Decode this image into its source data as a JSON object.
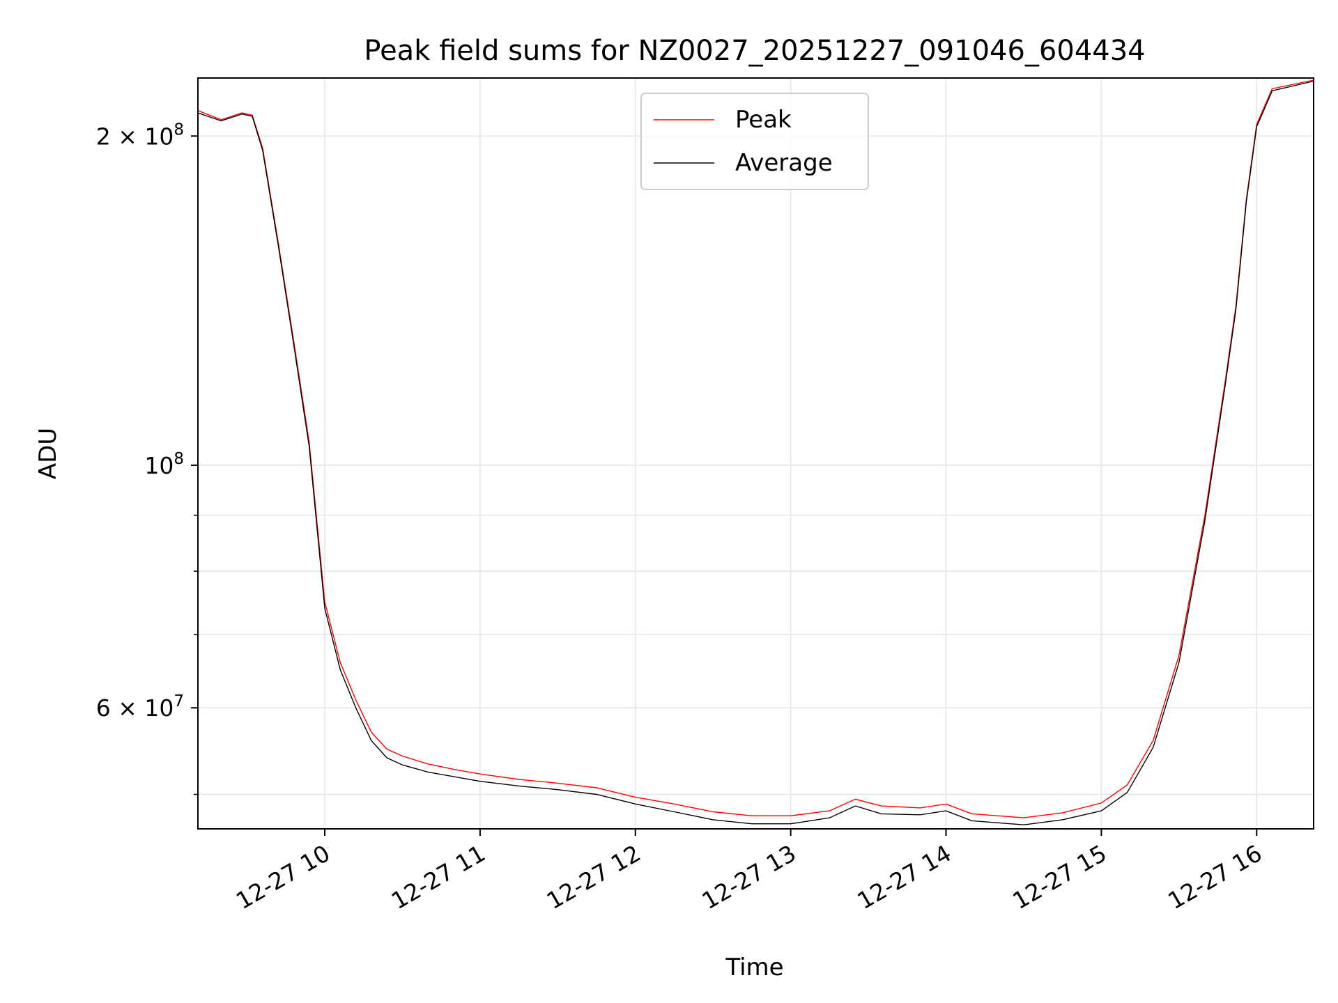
{
  "chart_data": {
    "type": "line",
    "title": "Peak field sums for NZ0027_20251227_091046_604434",
    "xlabel": "Time",
    "ylabel": "ADU",
    "x_scale": "time",
    "y_scale": "log",
    "xlim": [
      "2025-12-27 09:11",
      "2025-12-27 16:22"
    ],
    "ylim": [
      46500000,
      226000000
    ],
    "x_ticks": [
      {
        "value": "2025-12-27 10:00",
        "label": "12-27 10"
      },
      {
        "value": "2025-12-27 11:00",
        "label": "12-27 11"
      },
      {
        "value": "2025-12-27 12:00",
        "label": "12-27 12"
      },
      {
        "value": "2025-12-27 13:00",
        "label": "12-27 13"
      },
      {
        "value": "2025-12-27 14:00",
        "label": "12-27 14"
      },
      {
        "value": "2025-12-27 15:00",
        "label": "12-27 15"
      },
      {
        "value": "2025-12-27 16:00",
        "label": "12-27 16"
      }
    ],
    "y_ticks_major": [
      {
        "value": 60000000,
        "base": "6",
        "exp": "7"
      },
      {
        "value": 100000000,
        "base": "10",
        "exp": "8"
      },
      {
        "value": 200000000,
        "base": "2",
        "exp": "8"
      }
    ],
    "y_ticks_minor": [
      50000000,
      70000000,
      80000000,
      90000000
    ],
    "grid": true,
    "legend": {
      "position": "top-center"
    },
    "series": [
      {
        "name": "Peak",
        "color": "#ff0000",
        "points": [
          [
            "2025-12-27 09:11",
            211000000
          ],
          [
            "2025-12-27 09:20",
            207000000
          ],
          [
            "2025-12-27 09:28",
            210000000
          ],
          [
            "2025-12-27 09:32",
            209000000
          ],
          [
            "2025-12-27 09:36",
            195000000
          ],
          [
            "2025-12-27 09:42",
            160000000
          ],
          [
            "2025-12-27 09:48",
            130000000
          ],
          [
            "2025-12-27 09:54",
            105000000
          ],
          [
            "2025-12-27 10:00",
            75000000
          ],
          [
            "2025-12-27 10:06",
            66000000
          ],
          [
            "2025-12-27 10:12",
            61000000
          ],
          [
            "2025-12-27 10:18",
            57000000
          ],
          [
            "2025-12-27 10:24",
            55000000
          ],
          [
            "2025-12-27 10:30",
            54200000
          ],
          [
            "2025-12-27 10:40",
            53300000
          ],
          [
            "2025-12-27 10:50",
            52700000
          ],
          [
            "2025-12-27 11:00",
            52200000
          ],
          [
            "2025-12-27 11:15",
            51600000
          ],
          [
            "2025-12-27 11:30",
            51200000
          ],
          [
            "2025-12-27 11:45",
            50700000
          ],
          [
            "2025-12-27 12:00",
            49700000
          ],
          [
            "2025-12-27 12:15",
            49000000
          ],
          [
            "2025-12-27 12:30",
            48200000
          ],
          [
            "2025-12-27 12:45",
            47800000
          ],
          [
            "2025-12-27 13:00",
            47800000
          ],
          [
            "2025-12-27 13:15",
            48300000
          ],
          [
            "2025-12-27 13:25",
            49500000
          ],
          [
            "2025-12-27 13:35",
            48800000
          ],
          [
            "2025-12-27 13:50",
            48600000
          ],
          [
            "2025-12-27 14:00",
            49000000
          ],
          [
            "2025-12-27 14:10",
            48000000
          ],
          [
            "2025-12-27 14:30",
            47600000
          ],
          [
            "2025-12-27 14:45",
            48100000
          ],
          [
            "2025-12-27 15:00",
            49100000
          ],
          [
            "2025-12-27 15:10",
            51000000
          ],
          [
            "2025-12-27 15:20",
            56000000
          ],
          [
            "2025-12-27 15:30",
            67000000
          ],
          [
            "2025-12-27 15:40",
            90000000
          ],
          [
            "2025-12-27 15:48",
            120000000
          ],
          [
            "2025-12-27 15:52",
            140000000
          ],
          [
            "2025-12-27 15:56",
            175000000
          ],
          [
            "2025-12-27 16:00",
            205000000
          ],
          [
            "2025-12-27 16:06",
            221000000
          ],
          [
            "2025-12-27 16:22",
            225000000
          ]
        ]
      },
      {
        "name": "Average",
        "color": "#000000",
        "points": [
          [
            "2025-12-27 09:11",
            210000000
          ],
          [
            "2025-12-27 09:20",
            206500000
          ],
          [
            "2025-12-27 09:28",
            209500000
          ],
          [
            "2025-12-27 09:32",
            208500000
          ],
          [
            "2025-12-27 09:36",
            194000000
          ],
          [
            "2025-12-27 09:42",
            159000000
          ],
          [
            "2025-12-27 09:48",
            129000000
          ],
          [
            "2025-12-27 09:54",
            104000000
          ],
          [
            "2025-12-27 10:00",
            74000000
          ],
          [
            "2025-12-27 10:06",
            65000000
          ],
          [
            "2025-12-27 10:12",
            60000000
          ],
          [
            "2025-12-27 10:18",
            56000000
          ],
          [
            "2025-12-27 10:24",
            54000000
          ],
          [
            "2025-12-27 10:30",
            53200000
          ],
          [
            "2025-12-27 10:40",
            52400000
          ],
          [
            "2025-12-27 10:50",
            51900000
          ],
          [
            "2025-12-27 11:00",
            51400000
          ],
          [
            "2025-12-27 11:15",
            50900000
          ],
          [
            "2025-12-27 11:30",
            50500000
          ],
          [
            "2025-12-27 11:45",
            50000000
          ],
          [
            "2025-12-27 12:00",
            49000000
          ],
          [
            "2025-12-27 12:15",
            48200000
          ],
          [
            "2025-12-27 12:30",
            47400000
          ],
          [
            "2025-12-27 12:45",
            47000000
          ],
          [
            "2025-12-27 13:00",
            47000000
          ],
          [
            "2025-12-27 13:15",
            47600000
          ],
          [
            "2025-12-27 13:25",
            48800000
          ],
          [
            "2025-12-27 13:35",
            48000000
          ],
          [
            "2025-12-27 13:50",
            47900000
          ],
          [
            "2025-12-27 14:00",
            48300000
          ],
          [
            "2025-12-27 14:10",
            47300000
          ],
          [
            "2025-12-27 14:30",
            46900000
          ],
          [
            "2025-12-27 14:45",
            47400000
          ],
          [
            "2025-12-27 15:00",
            48300000
          ],
          [
            "2025-12-27 15:10",
            50200000
          ],
          [
            "2025-12-27 15:20",
            55200000
          ],
          [
            "2025-12-27 15:30",
            66000000
          ],
          [
            "2025-12-27 15:40",
            89000000
          ],
          [
            "2025-12-27 15:48",
            119000000
          ],
          [
            "2025-12-27 15:52",
            139000000
          ],
          [
            "2025-12-27 15:56",
            174000000
          ],
          [
            "2025-12-27 16:00",
            204000000
          ],
          [
            "2025-12-27 16:06",
            220000000
          ],
          [
            "2025-12-27 16:22",
            224500000
          ]
        ]
      }
    ]
  }
}
